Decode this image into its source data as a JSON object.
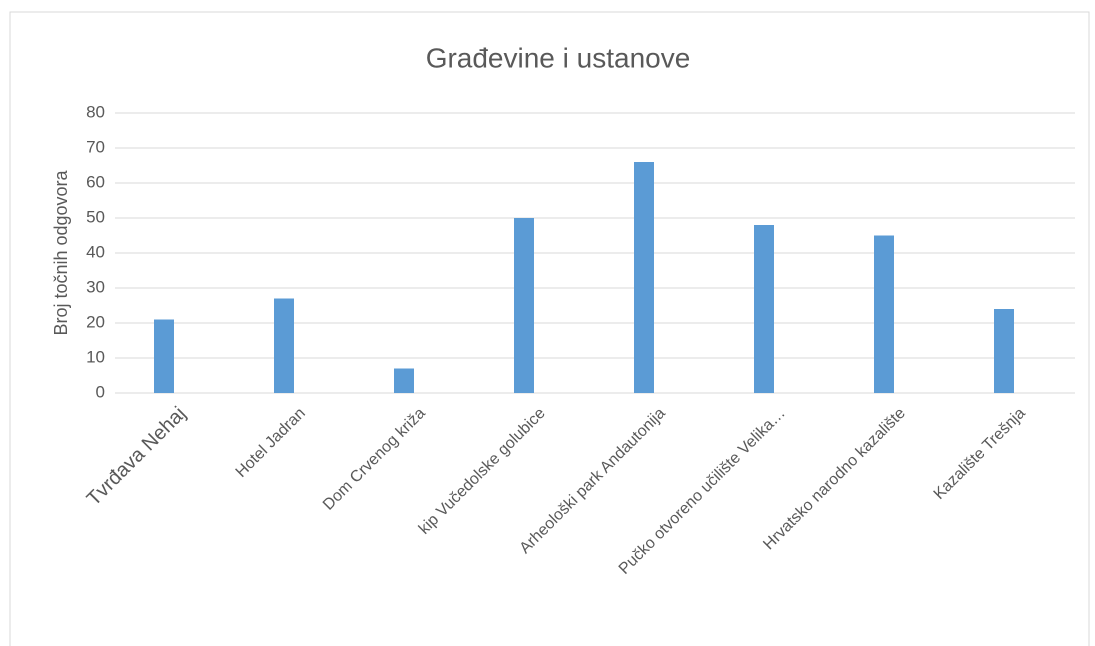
{
  "chart_data": {
    "type": "bar",
    "title": "Građevine i ustanove",
    "y_label": "Broj točnih odgovora",
    "categories": [
      "Tvrđava Nehaj",
      "Hotel Jadran",
      "Dom Crvenog križa",
      "kip Vučedolske golubice",
      "Arheološki park Andautonija",
      "Pučko otvoreno učilište Velika…",
      "Hrvatsko narodno kazalište",
      "Kazalište Trešnja"
    ],
    "values": [
      21,
      27,
      7,
      50,
      66,
      48,
      45,
      24
    ],
    "color": "#5b9bd5",
    "ylim": [
      0,
      80
    ],
    "yticks": [
      0,
      10,
      20,
      30,
      40,
      50,
      60,
      70,
      80
    ],
    "grid": true
  }
}
